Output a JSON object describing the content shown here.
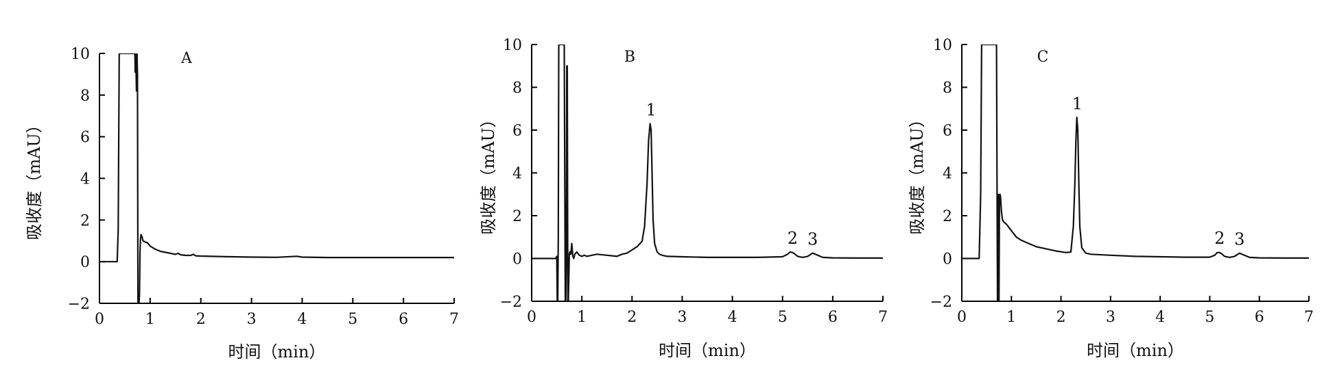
{
  "figure": {
    "panels": [
      "A",
      "B",
      "C"
    ]
  },
  "chart_data": [
    {
      "type": "line",
      "panel_label": "A",
      "xlabel": "时间（min）",
      "ylabel": "吸收度（mAU）",
      "xlim": [
        0,
        7
      ],
      "ylim": [
        -2,
        10
      ],
      "xticks": [
        "0",
        "1",
        "2",
        "3",
        "4",
        "5",
        "6",
        "7"
      ],
      "yticks": [
        "−2",
        "0",
        "2",
        "4",
        "6",
        "8",
        "10"
      ],
      "peak_labels": [],
      "series": [
        {
          "x": [
            0,
            0.35,
            0.37,
            0.38,
            0.39,
            0.4,
            0.41,
            0.7,
            0.705,
            0.71,
            0.72,
            0.73,
            0.74,
            0.75,
            0.76,
            0.77,
            0.78,
            0.79,
            0.8,
            0.81,
            0.82,
            0.84,
            0.86,
            0.9,
            0.95,
            1.0,
            1.1,
            1.2,
            1.3,
            1.4,
            1.5,
            1.55,
            1.6,
            1.7,
            1.8,
            1.85,
            1.9,
            2.0,
            2.5,
            3.0,
            3.5,
            3.9,
            4.0,
            4.5,
            5.0,
            5.5,
            6.0,
            6.5,
            7.0
          ],
          "y": [
            0,
            0,
            1.5,
            6,
            10,
            10,
            10,
            10,
            9.1,
            10,
            9.5,
            8.2,
            10,
            9,
            -2,
            -2,
            -2,
            -1.6,
            0.5,
            1.1,
            1.3,
            1.2,
            1.0,
            0.95,
            0.9,
            0.75,
            0.6,
            0.5,
            0.45,
            0.4,
            0.35,
            0.4,
            0.33,
            0.3,
            0.3,
            0.35,
            0.28,
            0.27,
            0.24,
            0.22,
            0.21,
            0.26,
            0.22,
            0.2,
            0.2,
            0.2,
            0.2,
            0.2,
            0.2
          ]
        }
      ]
    },
    {
      "type": "line",
      "panel_label": "B",
      "xlabel": "时间（min）",
      "ylabel": "吸收度（mAU）",
      "xlim": [
        0,
        7
      ],
      "ylim": [
        -2,
        10
      ],
      "xticks": [
        "0",
        "1",
        "2",
        "3",
        "4",
        "5",
        "6",
        "7"
      ],
      "yticks": [
        "−2",
        "0",
        "2",
        "4",
        "6",
        "8",
        "10"
      ],
      "peak_labels": [
        {
          "text": "1",
          "x": 2.38,
          "y": 6.3
        },
        {
          "text": "2",
          "x": 5.2,
          "y": 0.3
        },
        {
          "text": "3",
          "x": 5.6,
          "y": 0.25
        }
      ],
      "series": [
        {
          "x": [
            0,
            0.48,
            0.5,
            0.51,
            0.52,
            0.53,
            0.54,
            0.55,
            0.56,
            0.58,
            0.6,
            0.62,
            0.65,
            0.67,
            0.68,
            0.69,
            0.7,
            0.71,
            0.72,
            0.73,
            0.74,
            0.75,
            0.76,
            0.78,
            0.8,
            0.82,
            0.84,
            0.86,
            0.9,
            0.95,
            1.0,
            1.05,
            1.1,
            1.2,
            1.3,
            1.5,
            1.7,
            1.8,
            1.9,
            2.0,
            2.1,
            2.2,
            2.25,
            2.3,
            2.33,
            2.36,
            2.38,
            2.4,
            2.42,
            2.45,
            2.5,
            2.55,
            2.6,
            2.7,
            3.0,
            3.5,
            4.0,
            4.5,
            5.0,
            5.1,
            5.15,
            5.2,
            5.25,
            5.3,
            5.4,
            5.5,
            5.6,
            5.7,
            5.8,
            6.0,
            6.5,
            7.0
          ],
          "y": [
            0,
            0,
            0.1,
            -2,
            -2,
            1,
            10,
            10,
            10,
            10,
            10,
            10,
            10,
            -2,
            -2,
            0,
            9,
            9,
            -2,
            -2,
            -1,
            0.2,
            0.3,
            0.2,
            0.7,
            0.1,
            0,
            0.2,
            0.3,
            0.15,
            0.1,
            0.15,
            0.1,
            0.15,
            0.2,
            0.15,
            0.1,
            0.2,
            0.25,
            0.4,
            0.55,
            0.8,
            1.5,
            3.5,
            5.5,
            6.3,
            6.0,
            4.0,
            1.8,
            0.7,
            0.3,
            0.2,
            0.15,
            0.1,
            0.08,
            0.05,
            0.05,
            0.05,
            0.08,
            0.2,
            0.3,
            0.28,
            0.2,
            0.1,
            0.05,
            0.1,
            0.25,
            0.15,
            0.05,
            0.03,
            0.02,
            0.02
          ]
        }
      ]
    },
    {
      "type": "line",
      "panel_label": "C",
      "xlabel": "时间（min）",
      "ylabel": "吸收度（mAU）",
      "xlim": [
        0,
        7
      ],
      "ylim": [
        -2,
        10
      ],
      "xticks": [
        "0",
        "1",
        "2",
        "3",
        "4",
        "5",
        "6",
        "7"
      ],
      "yticks": [
        "−2",
        "0",
        "2",
        "4",
        "6",
        "8",
        "10"
      ],
      "peak_labels": [
        {
          "text": "1",
          "x": 2.33,
          "y": 6.6
        },
        {
          "text": "2",
          "x": 5.2,
          "y": 0.3
        },
        {
          "text": "3",
          "x": 5.6,
          "y": 0.25
        }
      ],
      "series": [
        {
          "x": [
            0,
            0.35,
            0.38,
            0.4,
            0.42,
            0.7,
            0.72,
            0.73,
            0.74,
            0.75,
            0.76,
            0.77,
            0.78,
            0.8,
            0.82,
            0.85,
            0.9,
            1.0,
            1.1,
            1.2,
            1.3,
            1.5,
            1.7,
            1.9,
            2.1,
            2.2,
            2.25,
            2.28,
            2.3,
            2.32,
            2.34,
            2.36,
            2.38,
            2.42,
            2.5,
            2.6,
            3.0,
            3.5,
            4.0,
            4.5,
            5.0,
            5.1,
            5.15,
            5.2,
            5.25,
            5.3,
            5.4,
            5.5,
            5.6,
            5.7,
            5.8,
            6.0,
            6.5,
            7.0
          ],
          "y": [
            0,
            0,
            3,
            10,
            10,
            10,
            -2,
            -2,
            3.0,
            -2,
            2.8,
            3.0,
            2.9,
            2.2,
            1.8,
            1.7,
            1.6,
            1.3,
            1.0,
            0.85,
            0.75,
            0.55,
            0.45,
            0.35,
            0.28,
            0.3,
            1.5,
            3.5,
            5.5,
            6.6,
            6.0,
            3.5,
            1.5,
            0.5,
            0.25,
            0.2,
            0.15,
            0.1,
            0.08,
            0.06,
            0.06,
            0.15,
            0.28,
            0.28,
            0.2,
            0.1,
            0.05,
            0.1,
            0.25,
            0.15,
            0.05,
            0.03,
            0.02,
            0.02
          ]
        }
      ]
    }
  ]
}
